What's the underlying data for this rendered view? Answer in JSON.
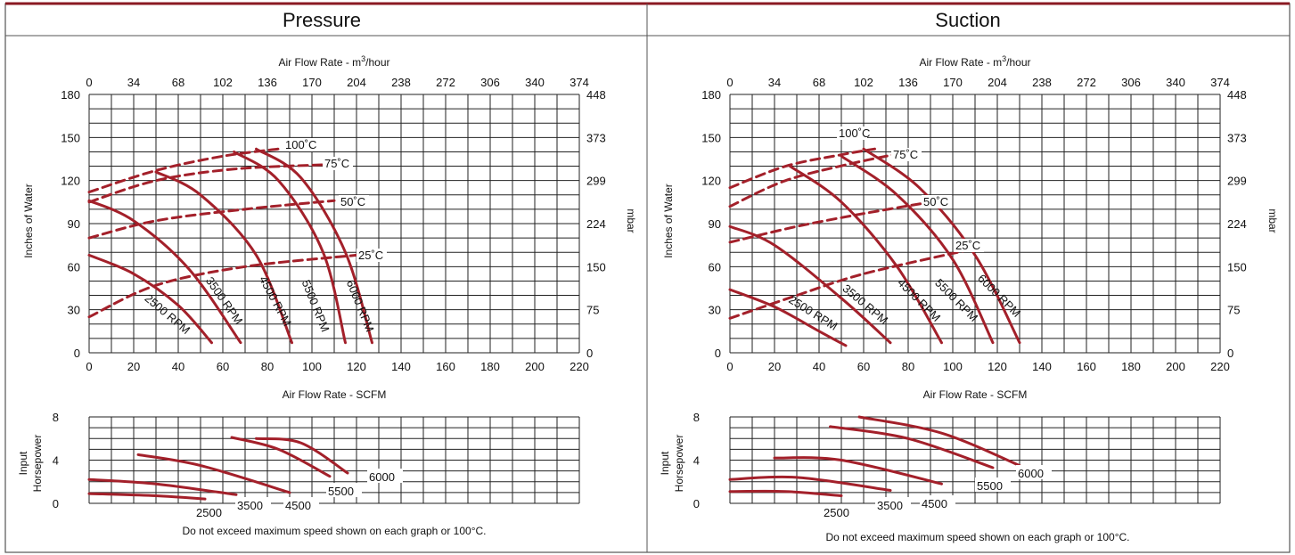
{
  "panels": [
    {
      "header": "Pressure",
      "top_axis_label": "Air Flow Rate - m",
      "top_axis_sup": "3",
      "top_axis_suffix": "/hour",
      "top_ticks": [
        "0",
        "34",
        "68",
        "102",
        "136",
        "170",
        "204",
        "238",
        "272",
        "306",
        "340",
        "374"
      ],
      "left_label": "Inches of Water",
      "left_ticks": [
        "180",
        "150",
        "120",
        "90",
        "60",
        "30",
        "0"
      ],
      "right_label": "mbar",
      "right_ticks": [
        "448",
        "373",
        "299",
        "224",
        "150",
        "75",
        "0"
      ],
      "bottom_ticks": [
        "0",
        "20",
        "40",
        "60",
        "80",
        "100",
        "120",
        "140",
        "160",
        "180",
        "200",
        "220"
      ],
      "bottom_label": "Air Flow Rate - SCFM",
      "hp_label_1": "Input",
      "hp_label_2": "Horsepower",
      "hp_ticks": [
        "8",
        "4",
        "0"
      ],
      "footnote": "Do not exceed maximum speed shown on each graph or 100°C.",
      "rpm_labels": [
        "2500 RPM",
        "3500 RPM",
        "4500 RPM",
        "5500 RPM",
        "6000 RPM"
      ],
      "temp_labels": [
        "100˚C",
        "75˚C",
        "50˚C",
        "25˚C"
      ],
      "hp_curve_labels": [
        "2500",
        "3500",
        "4500",
        "5500",
        "6000"
      ]
    },
    {
      "header": "Suction",
      "top_axis_label": "Air Flow Rate - m",
      "top_axis_sup": "3",
      "top_axis_suffix": "/hour",
      "top_ticks": [
        "0",
        "34",
        "68",
        "102",
        "136",
        "170",
        "204",
        "238",
        "272",
        "306",
        "340",
        "374"
      ],
      "left_label": "Inches of Water",
      "left_ticks": [
        "180",
        "150",
        "120",
        "90",
        "60",
        "30",
        "0"
      ],
      "right_label": "mbar",
      "right_ticks": [
        "448",
        "373",
        "299",
        "224",
        "150",
        "75",
        "0"
      ],
      "bottom_ticks": [
        "0",
        "20",
        "40",
        "60",
        "80",
        "100",
        "120",
        "140",
        "160",
        "180",
        "200",
        "220"
      ],
      "bottom_label": "Air Flow Rate - SCFM",
      "hp_label_1": "Input",
      "hp_label_2": "Horsepower",
      "hp_ticks": [
        "8",
        "4",
        "0"
      ],
      "footnote": "Do not exceed maximum speed shown on each graph or 100°C.",
      "rpm_labels": [
        "2500 RPM",
        "3500 RPM",
        "4500 RPM",
        "5500 RPM",
        "6000 RPM"
      ],
      "temp_labels": [
        "100˚C",
        "75˚C",
        "50˚C",
        "25˚C"
      ],
      "hp_curve_labels": [
        "2500",
        "3500",
        "4500",
        "5500",
        "6000"
      ]
    }
  ],
  "chart_data": [
    {
      "type": "line",
      "title": "Pressure",
      "xlabel": "Air Flow Rate - SCFM",
      "ylabel": "Inches of Water",
      "xlim": [
        0,
        220
      ],
      "ylim": [
        0,
        180
      ],
      "curve_color": "#a3202a",
      "series": [
        {
          "name": "2500 RPM",
          "x": [
            0,
            20,
            40,
            55
          ],
          "y": [
            68,
            55,
            33,
            7
          ]
        },
        {
          "name": "3500 RPM",
          "x": [
            0,
            20,
            45,
            68
          ],
          "y": [
            106,
            92,
            58,
            7
          ]
        },
        {
          "name": "4500 RPM",
          "x": [
            30,
            50,
            75,
            91
          ],
          "y": [
            126,
            110,
            68,
            7
          ]
        },
        {
          "name": "5500 RPM",
          "x": [
            65,
            85,
            105,
            115
          ],
          "y": [
            140,
            120,
            70,
            7
          ]
        },
        {
          "name": "6000 RPM",
          "x": [
            75,
            95,
            115,
            127
          ],
          "y": [
            142,
            122,
            70,
            7
          ]
        },
        {
          "name": "100˚C",
          "x": [
            0,
            30,
            60,
            85
          ],
          "y": [
            112,
            127,
            137,
            142
          ]
        },
        {
          "name": "75˚C",
          "x": [
            0,
            30,
            65,
            105
          ],
          "y": [
            105,
            120,
            128,
            131
          ]
        },
        {
          "name": "50˚C",
          "x": [
            0,
            30,
            70,
            110
          ],
          "y": [
            80,
            92,
            100,
            106
          ]
        },
        {
          "name": "25˚C",
          "x": [
            0,
            30,
            70,
            120
          ],
          "y": [
            25,
            47,
            60,
            68
          ]
        }
      ],
      "hp_chart": {
        "ylabel": "Input Horsepower",
        "ylim": [
          0,
          8
        ],
        "series": [
          {
            "name": "2500",
            "x": [
              0,
              30,
              52
            ],
            "y": [
              0.9,
              0.7,
              0.4
            ]
          },
          {
            "name": "3500",
            "x": [
              0,
              30,
              66
            ],
            "y": [
              2.2,
              1.8,
              0.8
            ]
          },
          {
            "name": "4500",
            "x": [
              22,
              50,
              90
            ],
            "y": [
              4.5,
              3.5,
              1.0
            ]
          },
          {
            "name": "5500",
            "x": [
              64,
              85,
              108
            ],
            "y": [
              6.1,
              5.0,
              2.5
            ]
          },
          {
            "name": "6000",
            "x": [
              75,
              95,
              116
            ],
            "y": [
              6.0,
              5.6,
              2.8
            ]
          }
        ]
      }
    },
    {
      "type": "line",
      "title": "Suction",
      "xlabel": "Air Flow Rate - SCFM",
      "ylabel": "Inches of Water",
      "xlim": [
        0,
        220
      ],
      "ylim": [
        0,
        180
      ],
      "curve_color": "#a3202a",
      "series": [
        {
          "name": "2500 RPM",
          "x": [
            0,
            20,
            40,
            52
          ],
          "y": [
            44,
            32,
            15,
            5
          ]
        },
        {
          "name": "3500 RPM",
          "x": [
            0,
            20,
            50,
            72
          ],
          "y": [
            88,
            75,
            38,
            7
          ]
        },
        {
          "name": "4500 RPM",
          "x": [
            27,
            50,
            75,
            95
          ],
          "y": [
            130,
            105,
            60,
            7
          ]
        },
        {
          "name": "5500 RPM",
          "x": [
            50,
            75,
            100,
            118
          ],
          "y": [
            137,
            110,
            65,
            7
          ]
        },
        {
          "name": "6000 RPM",
          "x": [
            60,
            85,
            110,
            130
          ],
          "y": [
            142,
            115,
            68,
            7
          ]
        },
        {
          "name": "100˚C",
          "x": [
            0,
            25,
            50,
            65
          ],
          "y": [
            115,
            130,
            138,
            142
          ]
        },
        {
          "name": "75˚C",
          "x": [
            0,
            25,
            55,
            80
          ],
          "y": [
            102,
            120,
            132,
            140
          ]
        },
        {
          "name": "50˚C",
          "x": [
            0,
            30,
            60,
            90
          ],
          "y": [
            77,
            88,
            97,
            105
          ]
        },
        {
          "name": "25˚C",
          "x": [
            0,
            30,
            60,
            105
          ],
          "y": [
            24,
            40,
            55,
            71
          ]
        }
      ],
      "hp_chart": {
        "ylabel": "Input Horsepower",
        "ylim": [
          0,
          8
        ],
        "series": [
          {
            "name": "2500",
            "x": [
              0,
              25,
              50
            ],
            "y": [
              1.1,
              1.1,
              0.7
            ]
          },
          {
            "name": "3500",
            "x": [
              0,
              30,
              72
            ],
            "y": [
              2.2,
              2.4,
              1.2
            ]
          },
          {
            "name": "4500",
            "x": [
              20,
              50,
              95
            ],
            "y": [
              4.2,
              4.0,
              1.8
            ]
          },
          {
            "name": "5500",
            "x": [
              45,
              80,
              118
            ],
            "y": [
              7.1,
              6.0,
              3.3
            ]
          },
          {
            "name": "6000",
            "x": [
              58,
              95,
              130
            ],
            "y": [
              8.0,
              6.5,
              3.5
            ]
          }
        ]
      }
    }
  ]
}
